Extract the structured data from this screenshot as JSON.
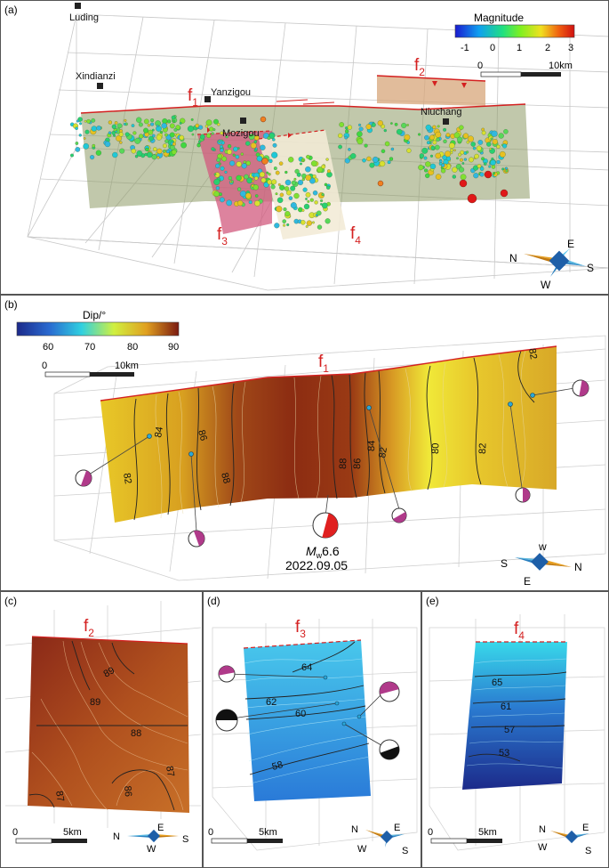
{
  "panels": {
    "a": {
      "label": "(a)"
    },
    "b": {
      "label": "(b)"
    },
    "c": {
      "label": "(c)"
    },
    "d": {
      "label": "(d)"
    },
    "e": {
      "label": "(e)"
    }
  },
  "panel_a": {
    "places": [
      "Luding",
      "Xindianzi",
      "Yanzigou",
      "Mozigou",
      "Niuchang"
    ],
    "faults": {
      "f1": "f",
      "f1_sub": "1",
      "f2": "f",
      "f2_sub": "2",
      "f3": "f",
      "f3_sub": "3",
      "f4": "f",
      "f4_sub": "4"
    },
    "colorbar": {
      "title": "Magnitude",
      "ticks": [
        "-1",
        "0",
        "1",
        "2",
        "3"
      ]
    },
    "scale": {
      "zero": "0",
      "label": "10km"
    },
    "compass": {
      "n": "N",
      "e": "E",
      "s": "S",
      "w": "W"
    }
  },
  "panel_b": {
    "colorbar": {
      "title": "Dip/°",
      "ticks": [
        "60",
        "70",
        "80",
        "90"
      ]
    },
    "scale": {
      "zero": "0",
      "label": "10km"
    },
    "fault": {
      "f": "f",
      "sub": "1"
    },
    "contours": [
      "84",
      "86",
      "82",
      "88",
      "88",
      "86",
      "84",
      "82",
      "80",
      "82",
      "82"
    ],
    "event": {
      "mag_m": "M",
      "mag_w": "w",
      "mag_value": "6.6",
      "date": "2022.09.05"
    },
    "compass": {
      "n": "N",
      "e": "E",
      "s": "S",
      "w": "w"
    }
  },
  "panel_c": {
    "fault": {
      "f": "f",
      "sub": "2"
    },
    "contours": [
      "89",
      "89",
      "88",
      "87",
      "87",
      "86"
    ],
    "scale": {
      "zero": "0",
      "label": "5km"
    },
    "compass": {
      "n": "N",
      "e": "E",
      "s": "S",
      "w": "W"
    }
  },
  "panel_d": {
    "fault": {
      "f": "f",
      "sub": "3"
    },
    "contours": [
      "64",
      "62",
      "60",
      "58"
    ],
    "scale": {
      "zero": "0",
      "label": "5km"
    },
    "compass": {
      "n": "N",
      "e": "E",
      "s": "S",
      "w": "W"
    }
  },
  "panel_e": {
    "fault": {
      "f": "f",
      "sub": "4"
    },
    "contours": [
      "65",
      "61",
      "57",
      "53"
    ],
    "scale": {
      "zero": "0",
      "label": "5km"
    },
    "compass": {
      "n": "N",
      "e": "E",
      "s": "S",
      "w": "W"
    }
  },
  "colors": {
    "fault_red": "#d42020",
    "dip_high": "#7b1a10",
    "dip_mid": "#e0c020",
    "dip_low": "#1c2a8a",
    "mech_purple": "#b03a8a",
    "mech_red": "#e02020"
  }
}
